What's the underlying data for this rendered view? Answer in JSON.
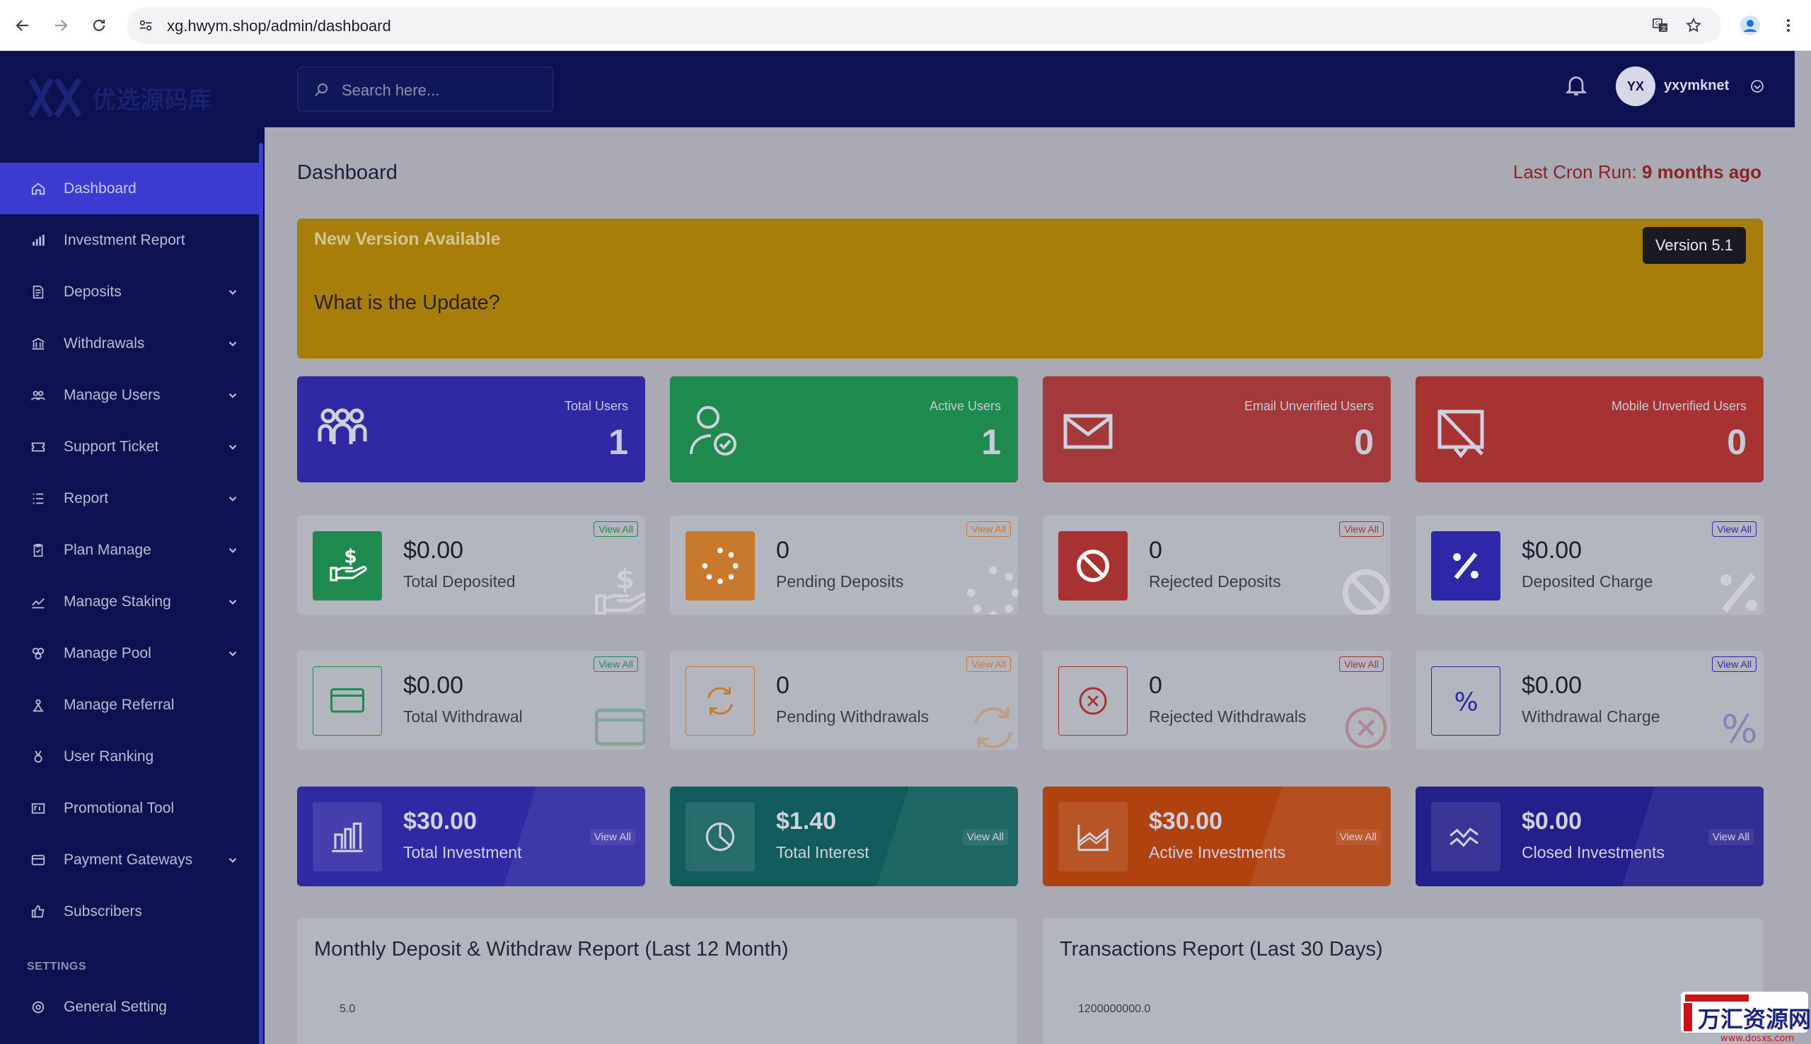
{
  "browser": {
    "url": "xg.hwym.shop/admin/dashboard"
  },
  "logo": {
    "text": "优选源码库"
  },
  "sidebar": {
    "items": [
      {
        "label": "Dashboard",
        "icon": "home-icon",
        "active": true,
        "dropdown": false
      },
      {
        "label": "Investment Report",
        "icon": "bar-chart-icon",
        "dropdown": false
      },
      {
        "label": "Deposits",
        "icon": "receipt-icon",
        "dropdown": true
      },
      {
        "label": "Withdrawals",
        "icon": "bank-icon",
        "dropdown": true
      },
      {
        "label": "Manage Users",
        "icon": "users-icon",
        "dropdown": true
      },
      {
        "label": "Support Ticket",
        "icon": "ticket-icon",
        "dropdown": true
      },
      {
        "label": "Report",
        "icon": "list-icon",
        "dropdown": true
      },
      {
        "label": "Plan Manage",
        "icon": "clipboard-icon",
        "dropdown": true
      },
      {
        "label": "Manage Staking",
        "icon": "trend-icon",
        "dropdown": true
      },
      {
        "label": "Manage Pool",
        "icon": "pool-icon",
        "dropdown": true
      },
      {
        "label": "Manage Referral",
        "icon": "referral-icon",
        "dropdown": false
      },
      {
        "label": "User Ranking",
        "icon": "medal-icon",
        "dropdown": false
      },
      {
        "label": "Promotional Tool",
        "icon": "ad-icon",
        "dropdown": false
      },
      {
        "label": "Payment Gateways",
        "icon": "card-icon",
        "dropdown": true
      },
      {
        "label": "Subscribers",
        "icon": "thumb-icon",
        "dropdown": false
      }
    ],
    "settings_heading": "SETTINGS",
    "settings_items": [
      {
        "label": "General Setting",
        "icon": "gear-icon"
      }
    ]
  },
  "topbar": {
    "search_placeholder": "Search here...",
    "username": "yxymknet"
  },
  "page": {
    "title": "Dashboard",
    "cron_label": "Last Cron Run:",
    "cron_value": "9 months ago"
  },
  "banner": {
    "title": "New Version Available",
    "question": "What is the Update?",
    "version": "Version 5.1"
  },
  "user_widgets": [
    {
      "label": "Total Users",
      "value": "1",
      "color": "#2f2aa3",
      "icon": "users-group-icon"
    },
    {
      "label": "Active Users",
      "value": "1",
      "color": "#1f8a4e",
      "icon": "user-check-icon"
    },
    {
      "label": "Email Unverified Users",
      "value": "0",
      "color": "#a33a3a",
      "icon": "envelope-icon"
    },
    {
      "label": "Mobile Unverified Users",
      "value": "0",
      "color": "#a63232",
      "icon": "mobile-off-icon"
    }
  ],
  "deposit_widgets": [
    {
      "amount": "$0.00",
      "label": "Total Deposited",
      "view": "View All",
      "color": "#1f8a4e",
      "icon": "hand-dollar-icon"
    },
    {
      "amount": "0",
      "label": "Pending Deposits",
      "view": "View All",
      "color": "#c8792e",
      "icon": "spinner-icon"
    },
    {
      "amount": "0",
      "label": "Rejected Deposits",
      "view": "View All",
      "color": "#a83232",
      "icon": "ban-icon"
    },
    {
      "amount": "$0.00",
      "label": "Deposited Charge",
      "view": "View All",
      "color": "#2c28a8",
      "icon": "percent-icon"
    }
  ],
  "withdraw_widgets": [
    {
      "amount": "$0.00",
      "label": "Total Withdrawal",
      "view": "View All",
      "color": "#1f8a4e",
      "icon": "wallet-icon"
    },
    {
      "amount": "0",
      "label": "Pending Withdrawals",
      "view": "View All",
      "color": "#c8792e",
      "icon": "refresh-icon"
    },
    {
      "amount": "0",
      "label": "Rejected Withdrawals",
      "view": "View All",
      "color": "#a83232",
      "icon": "x-circle-icon"
    },
    {
      "amount": "$0.00",
      "label": "Withdrawal Charge",
      "view": "View All",
      "color": "#2c28a8",
      "icon": "percent-icon"
    }
  ],
  "invest_widgets": [
    {
      "amount": "$30.00",
      "label": "Total Investment",
      "view": "View All",
      "color": "#2f2aa3",
      "icon": "bars-icon"
    },
    {
      "amount": "$1.40",
      "label": "Total Interest",
      "view": "View All",
      "color": "#0f5c5a",
      "icon": "pie-icon"
    },
    {
      "amount": "$30.00",
      "label": "Active Investments",
      "view": "View All",
      "color": "#b0420f",
      "icon": "area-chart-icon"
    },
    {
      "amount": "$0.00",
      "label": "Closed Investments",
      "view": "View All",
      "color": "#23208c",
      "icon": "wave-icon"
    }
  ],
  "panels": [
    {
      "title": "Monthly Deposit & Withdraw Report (Last 12 Month)",
      "y_tick": "5.0"
    },
    {
      "title": "Transactions Report (Last 30 Days)",
      "y_tick": "1200000000.0"
    }
  ],
  "watermark": {
    "text": "万汇资源网",
    "sub": "www.dosxs.com"
  }
}
